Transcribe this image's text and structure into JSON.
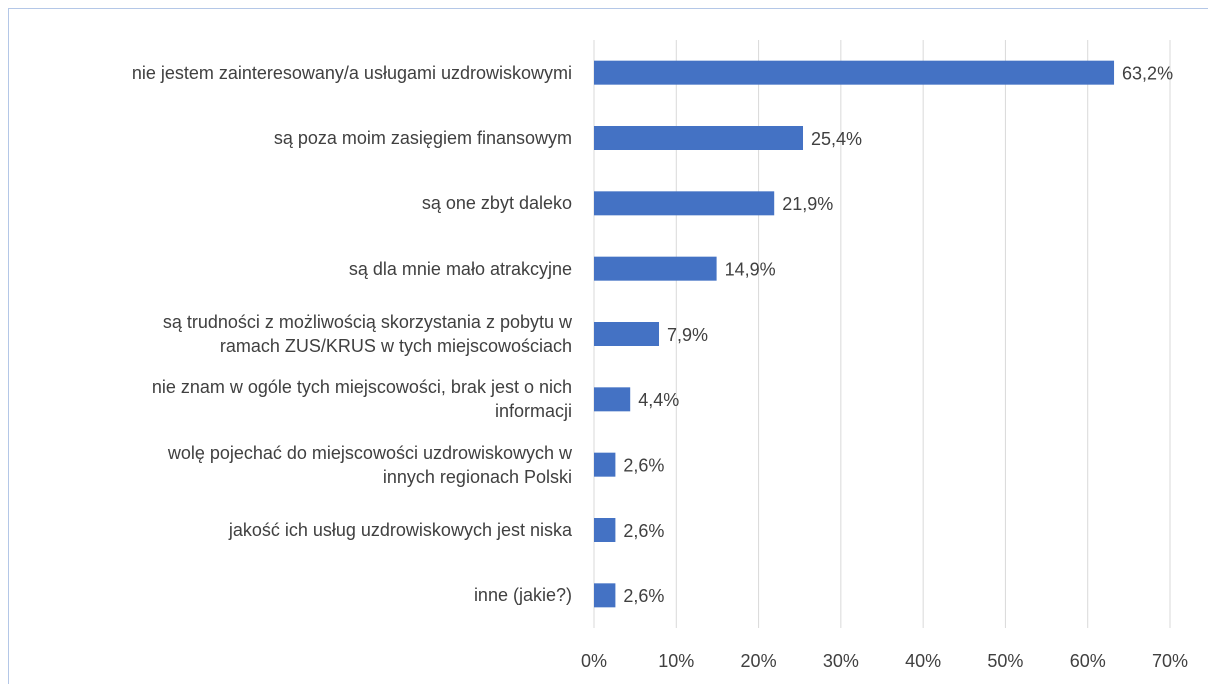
{
  "chart_data": {
    "type": "bar",
    "orientation": "horizontal",
    "categories": [
      "nie jestem zainteresowany/a usługami uzdrowiskowymi",
      "są poza moim zasięgiem finansowym",
      "są one zbyt daleko",
      "są dla mnie mało atrakcyjne",
      "są trudności z możliwością skorzystania z pobytu w\nramach ZUS/KRUS w tych miejscowościach",
      "nie znam w ogóle tych miejscowości, brak jest o nich\ninformacji",
      "wolę pojechać do miejscowości uzdrowiskowych w\ninnych regionach Polski",
      "jakość ich usług uzdrowiskowych jest niska",
      "inne (jakie?)"
    ],
    "values": [
      63.2,
      25.4,
      21.9,
      14.9,
      7.9,
      4.4,
      2.6,
      2.6,
      2.6
    ],
    "value_labels": [
      "63,2%",
      "25,4%",
      "21,9%",
      "14,9%",
      "7,9%",
      "4,4%",
      "2,6%",
      "2,6%",
      "2,6%"
    ],
    "color": "#4472c4",
    "xlim": [
      0,
      70
    ],
    "xticks": [
      {
        "value": 0,
        "label": "0%"
      },
      {
        "value": 10,
        "label": "10%"
      },
      {
        "value": 20,
        "label": "20%"
      },
      {
        "value": 30,
        "label": "30%"
      },
      {
        "value": 40,
        "label": "40%"
      },
      {
        "value": 50,
        "label": "50%"
      },
      {
        "value": 60,
        "label": "60%"
      },
      {
        "value": 70,
        "label": "70%"
      }
    ],
    "grid": true
  }
}
